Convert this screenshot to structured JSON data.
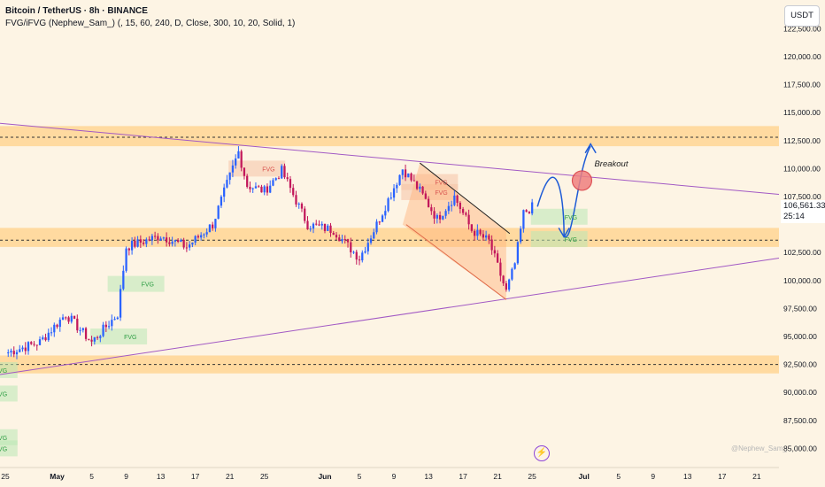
{
  "legend": {
    "symbol": "Bitcoin / TetherUS · 8h · BINANCE",
    "indicator": "FVG/iFVG (Nephew_Sam_) (, 15, 60, 240, D, Close, 300, 10, 20, Solid, 1)"
  },
  "currency_button": "USDT",
  "last_price": "106,561.33",
  "countdown": "25:14",
  "watermark": "@Nephew_Sam_",
  "bolt_icon": "lightning-icon",
  "colors": {
    "background": "#fdf4e4",
    "bull": "#2962ff",
    "bear": "#c2185b",
    "zone": "#ffd18a",
    "fvg_green": "#2e9e44",
    "fvg_red": "#d9534f",
    "trendline": "#a259c4",
    "projection": "#1e5bd6"
  },
  "chart_data": {
    "type": "candlestick",
    "title": "Bitcoin / TetherUS · 8h · BINANCE",
    "xlabel": "",
    "ylabel": "",
    "ylim": [
      83500,
      124500
    ],
    "y_ticks": [
      "122,500.00",
      "120,000.00",
      "117,500.00",
      "115,000.00",
      "112,500.00",
      "110,000.00",
      "107,500.00",
      "102,500.00",
      "100,000.00",
      "97,500.00",
      "95,000.00",
      "92,500.00",
      "90,000.00",
      "87,500.00",
      "85,000.00"
    ],
    "x_ticks": [
      "25",
      "May",
      "5",
      "9",
      "13",
      "17",
      "21",
      "25",
      "Jun",
      "5",
      "9",
      "13",
      "17",
      "21",
      "25",
      "Jul",
      "5",
      "9",
      "13",
      "17",
      "21"
    ],
    "anchor_points": [
      {
        "date": "Apr 25",
        "price": 93500
      },
      {
        "date": "Apr 29",
        "price": 94500
      },
      {
        "date": "May 2",
        "price": 97000
      },
      {
        "date": "May 5",
        "price": 94500
      },
      {
        "date": "May 8",
        "price": 97000
      },
      {
        "date": "May 9",
        "price": 103000
      },
      {
        "date": "May 13",
        "price": 104000
      },
      {
        "date": "May 16",
        "price": 103000
      },
      {
        "date": "May 19",
        "price": 105000
      },
      {
        "date": "May 22",
        "price": 111500
      },
      {
        "date": "May 23",
        "price": 108500
      },
      {
        "date": "May 25",
        "price": 108000
      },
      {
        "date": "May 27",
        "price": 109800
      },
      {
        "date": "May 30",
        "price": 105000
      },
      {
        "date": "Jun 2",
        "price": 104500
      },
      {
        "date": "Jun 5",
        "price": 102000
      },
      {
        "date": "Jun 7",
        "price": 105000
      },
      {
        "date": "Jun 10",
        "price": 110000
      },
      {
        "date": "Jun 12",
        "price": 108000
      },
      {
        "date": "Jun 14",
        "price": 105500
      },
      {
        "date": "Jun 16",
        "price": 107500
      },
      {
        "date": "Jun 18",
        "price": 104500
      },
      {
        "date": "Jun 20",
        "price": 103500
      },
      {
        "date": "Jun 22",
        "price": 99000
      },
      {
        "date": "Jun 23",
        "price": 101500
      },
      {
        "date": "Jun 24",
        "price": 106000
      },
      {
        "date": "Jun 25",
        "price": 106561
      }
    ],
    "horizontal_zones": [
      {
        "price_low": 112000,
        "price_high": 113800,
        "line": 112800
      },
      {
        "price_low": 103000,
        "price_high": 104700,
        "line": 103600
      },
      {
        "price_low": 91700,
        "price_high": 93300,
        "line": 92500
      }
    ],
    "fvg_labels": [
      {
        "text": "FVG",
        "type": "bearish",
        "date": "May 27",
        "price": 110000
      },
      {
        "text": "FVG",
        "type": "bearish",
        "date": "Jun 16",
        "price": 108800
      },
      {
        "text": "FVG",
        "type": "bearish",
        "date": "Jun 16",
        "price": 107900
      },
      {
        "text": "FVG",
        "type": "bullish",
        "date": "Jul 1",
        "price": 105700
      },
      {
        "text": "FVG",
        "type": "bullish",
        "date": "Jul 1",
        "price": 103700
      },
      {
        "text": "FVG",
        "type": "bullish",
        "date": "May 13",
        "price": 99700
      },
      {
        "text": "FVG",
        "type": "bullish",
        "date": "May 11",
        "price": 95000
      },
      {
        "text": "FVG",
        "type": "bullish",
        "date": "Apr 26",
        "price": 92000
      },
      {
        "text": "FVG",
        "type": "bullish",
        "date": "Apr 26",
        "price": 89900
      },
      {
        "text": "FVG",
        "type": "bullish",
        "date": "Apr 26",
        "price": 86000
      },
      {
        "text": "FVG",
        "type": "bullish",
        "date": "Apr 26",
        "price": 85000
      }
    ],
    "annotations": [
      {
        "text": "Breakout",
        "date": "Jul 2",
        "price": 109800
      }
    ]
  }
}
